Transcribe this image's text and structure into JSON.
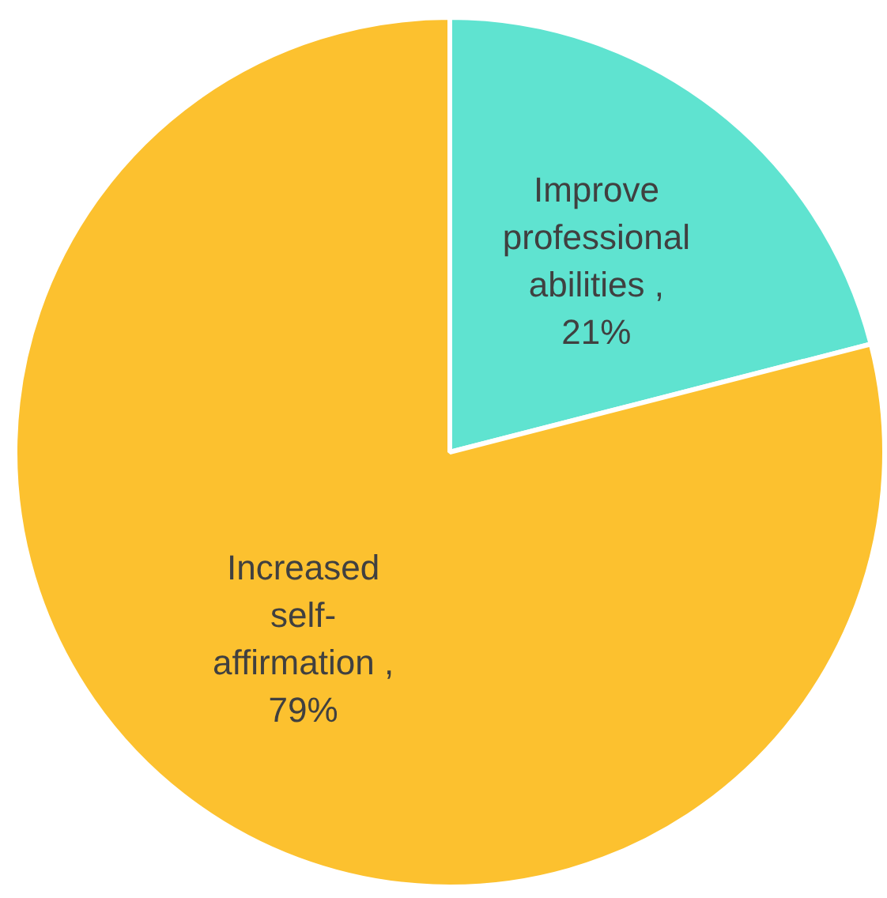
{
  "chart_data": {
    "type": "pie",
    "categories": [
      "Improve professional abilities",
      "Increased self-affirmation"
    ],
    "values": [
      21,
      79
    ],
    "colors": [
      "#5fe3d0",
      "#fcc12f"
    ],
    "value_labels": [
      ", 21%",
      ", 79%"
    ],
    "legend": false
  }
}
